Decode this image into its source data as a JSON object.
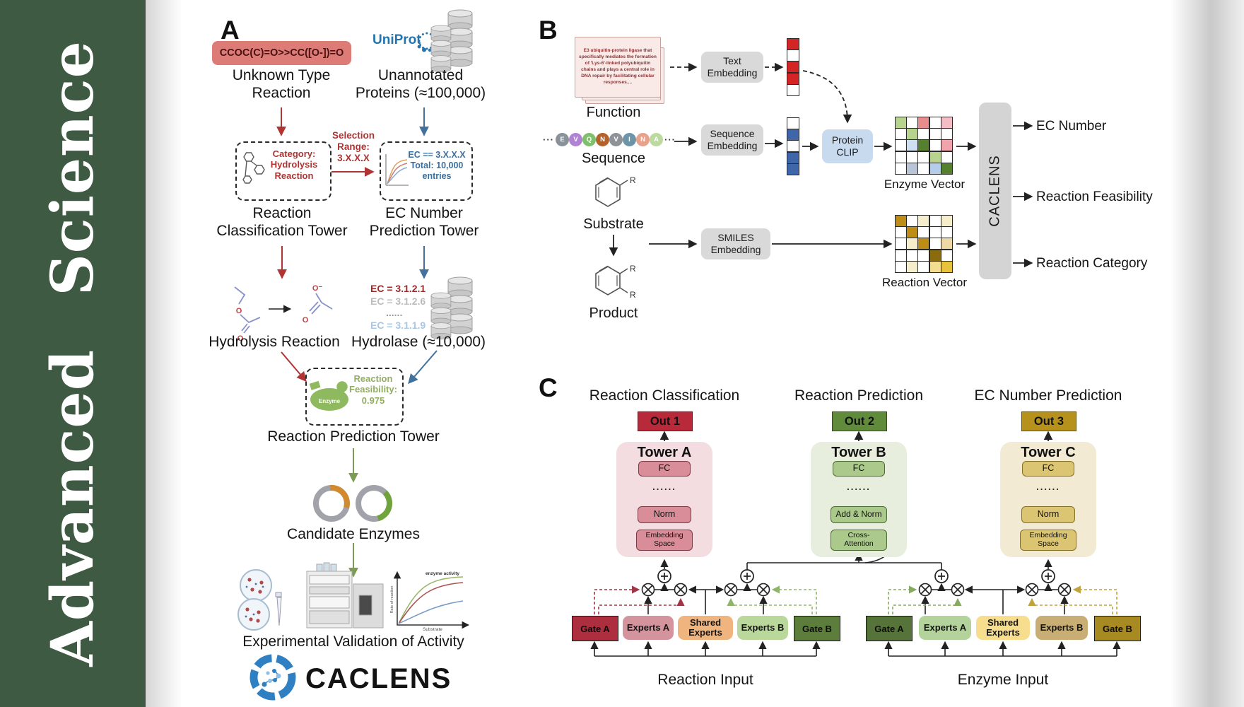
{
  "journal": {
    "name": "Advanced Science"
  },
  "panel_a": {
    "label": "A",
    "smiles": "CCOC(C)=O>>CC([O-])=O",
    "unknown_type": "Unknown Type\nReaction",
    "uniprot": "UniProt",
    "unannotated": "Unannotated\nProteins (≈100,000)",
    "category_box": "Category:\nHydrolysis\nReaction",
    "selection": "Selection\nRange:\n3.X.X.X",
    "ec_filter_box": "EC == 3.X.X.X\nTotal: 10,000\nentries",
    "classification_tower": "Reaction\nClassification Tower",
    "ec_tower": "EC Number\nPrediction Tower",
    "ec_list": [
      "EC = 3.1.2.1",
      "EC = 3.1.2.6",
      "......",
      "EC = 3.1.1.9"
    ],
    "ec_list_colors": [
      "#9e2b2b",
      "#bcbcbc",
      "#9a9a9a",
      "#a9c6e4"
    ],
    "hydrolysis": "Hydrolysis Reaction",
    "hydrolase": "Hydrolase (≈10,000)",
    "enzyme_badge": "Enzyme",
    "feasibility": "Reaction\nFeasibility:\n0.975",
    "prediction_tower": "Reaction Prediction Tower",
    "candidates": "Candidate Enzymes",
    "activity_plot": {
      "title": "enzyme activity",
      "ylabel": "Rate of reaction",
      "xlabel": "Substrate"
    },
    "validation": "Experimental Validation of Activity",
    "brand": "CACLENS",
    "atoms": {
      "o": "O",
      "o_minus": "O⁻"
    }
  },
  "panel_b": {
    "label": "B",
    "function_card": "E3 ubiquitin-protein ligase that specifically mediates the formation of 'Lys-6'-linked polyubiquitin chains and plays a central role in DNA repair by facilitating cellular responses....",
    "function_label": "Function",
    "text_embedding": "Text\nEmbedding",
    "sequence_label": "Sequence",
    "ellipsis": "···",
    "residues": [
      {
        "t": "E",
        "c": "#8a9299"
      },
      {
        "t": "V",
        "c": "#b183d4"
      },
      {
        "t": "Q",
        "c": "#7fc06c"
      },
      {
        "t": "N",
        "c": "#b5622a"
      },
      {
        "t": "V",
        "c": "#8d9399"
      },
      {
        "t": "I",
        "c": "#6e94a8"
      },
      {
        "t": "N",
        "c": "#e8a18c"
      },
      {
        "t": "A",
        "c": "#bcd9a0"
      }
    ],
    "sequence_embedding": "Sequence\nEmbedding",
    "protein_clip": "Protein\nCLIP",
    "substrate": "Substrate",
    "product": "Product",
    "r_group": "R",
    "smiles_embedding": "SMILES\nEmbedding",
    "enzyme_vector_label": "Enzyme Vector",
    "reaction_vector_label": "Reaction Vector",
    "caclens": "CACLENS",
    "outputs": [
      "EC Number",
      "Reaction Feasibility",
      "Reaction Category"
    ],
    "text_vector": [
      "#d32525",
      "#ffffff",
      "#d32525",
      "#d32525",
      "#ffffff"
    ],
    "sequence_vector": [
      "#ffffff",
      "#3f66a8",
      "#ffffff",
      "#3f66a8",
      "#3f66a8"
    ],
    "enzyme_vector": [
      "#b7d48e",
      "#ffffff",
      "#e98c8c",
      "#ffffff",
      "#f4bcc4",
      "#ffffff",
      "#b7d48e",
      "#ffffff",
      "#ffffff",
      "#ffffff",
      "#ffffff",
      "#cfdff2",
      "#55812f",
      "#ffffff",
      "#f0a3ab",
      "#ffffff",
      "#ffffff",
      "#ffffff",
      "#b7d48e",
      "#ffffff",
      "#ffffff",
      "#b9c4d6",
      "#ffffff",
      "#b5cde8",
      "#55812f"
    ],
    "reaction_vector": [
      "#bd8d15",
      "#ffffff",
      "#f6eecb",
      "#ffffff",
      "#f6eecb",
      "#ffffff",
      "#bd8d15",
      "#ffffff",
      "#ffffff",
      "#ffffff",
      "#ffffff",
      "#f6eecb",
      "#bd8d15",
      "#ffffff",
      "#ecd9a4",
      "#ffffff",
      "#ffffff",
      "#ffffff",
      "#8a6c0e",
      "#ffffff",
      "#ffffff",
      "#f6eecb",
      "#ffffff",
      "#f3dd90",
      "#e7c33c"
    ]
  },
  "panel_c": {
    "label": "C",
    "columns": [
      {
        "header": "Reaction Classification",
        "out": "Out 1",
        "tower": "Tower A",
        "fc": "FC",
        "dots": "......",
        "l1": "Norm",
        "l2": "Embedding\nSpace"
      },
      {
        "header": "Reaction Prediction",
        "out": "Out 2",
        "tower": "Tower B",
        "fc": "FC",
        "dots": "......",
        "l1": "Add & Norm",
        "l2": "Cross-\nAttention"
      },
      {
        "header": "EC Number Prediction",
        "out": "Out 3",
        "tower": "Tower C",
        "fc": "FC",
        "dots": "......",
        "l1": "Norm",
        "l2": "Embedding\nSpace"
      }
    ],
    "moe_reaction": {
      "gate_a": "Gate A",
      "experts_a": "Experts A",
      "shared": "Shared\nExperts",
      "experts_b": "Experts B",
      "gate_b": "Gate B",
      "input_label": "Reaction Input"
    },
    "moe_enzyme": {
      "gate_a": "Gate A",
      "experts_a": "Experts A",
      "shared": "Shared\nExperts",
      "experts_b": "Experts B",
      "gate_b": "Gate B",
      "input_label": "Enzyme Input"
    }
  }
}
